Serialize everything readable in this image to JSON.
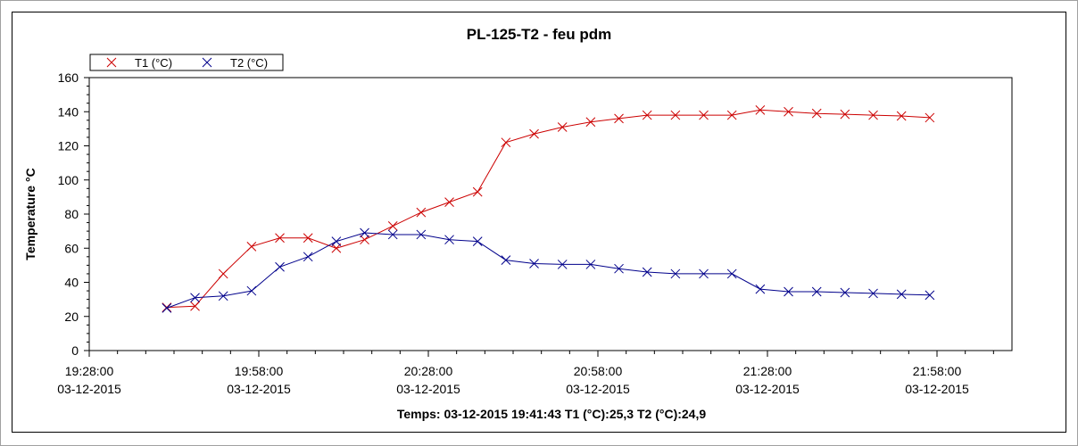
{
  "chart_data": {
    "type": "line",
    "title": "PL-125-T2 - feu pdm",
    "ylabel": "Temperature °C",
    "xlabel": "",
    "ylim": [
      0,
      160
    ],
    "yticks": [
      0,
      20,
      40,
      60,
      80,
      100,
      120,
      140,
      160
    ],
    "xlim": [
      "03-12-2015 19:28:00",
      "03-12-2015 22:10:00"
    ],
    "xticks": [
      {
        "time": "19:28:00",
        "date": "03-12-2015",
        "minutes": 0
      },
      {
        "time": "19:58:00",
        "date": "03-12-2015",
        "minutes": 30
      },
      {
        "time": "20:28:00",
        "date": "03-12-2015",
        "minutes": 60
      },
      {
        "time": "20:58:00",
        "date": "03-12-2015",
        "minutes": 90
      },
      {
        "time": "21:28:00",
        "date": "03-12-2015",
        "minutes": 120
      },
      {
        "time": "21:58:00",
        "date": "03-12-2015",
        "minutes": 150
      }
    ],
    "grid": false,
    "legend_position": "top-left",
    "x": [
      "19:41:43",
      "19:46:43",
      "19:51:43",
      "19:56:43",
      "20:01:43",
      "20:06:43",
      "20:11:43",
      "20:16:43",
      "20:21:43",
      "20:26:43",
      "20:31:43",
      "20:36:43",
      "20:41:43",
      "20:46:43",
      "20:51:43",
      "20:56:43",
      "21:01:43",
      "21:06:43",
      "21:11:43",
      "21:16:43",
      "21:21:43",
      "21:26:43",
      "21:31:43",
      "21:36:43",
      "21:41:43",
      "21:46:43",
      "21:51:43",
      "21:56:43"
    ],
    "series": [
      {
        "name": "T1 (°C)",
        "color": "#cc0000",
        "values": [
          25.3,
          26,
          45,
          61,
          66,
          66,
          60,
          65,
          73,
          81,
          87,
          93,
          122,
          127,
          131,
          134,
          136,
          138,
          138,
          138,
          138,
          141,
          140,
          139,
          138.5,
          138,
          137.5,
          136.5
        ]
      },
      {
        "name": "T2 (°C)",
        "color": "#00008b",
        "values": [
          24.9,
          31,
          32,
          35,
          49,
          55,
          64,
          69,
          68,
          68,
          65,
          64,
          53,
          51,
          50.5,
          50.5,
          48,
          46,
          45,
          45,
          45,
          36,
          34.5,
          34.5,
          34,
          33.5,
          33,
          32.5
        ]
      }
    ]
  },
  "status": {
    "text": "Temps: 03-12-2015 19:41:43 T1 (°C):25,3 T2 (°C):24,9"
  }
}
